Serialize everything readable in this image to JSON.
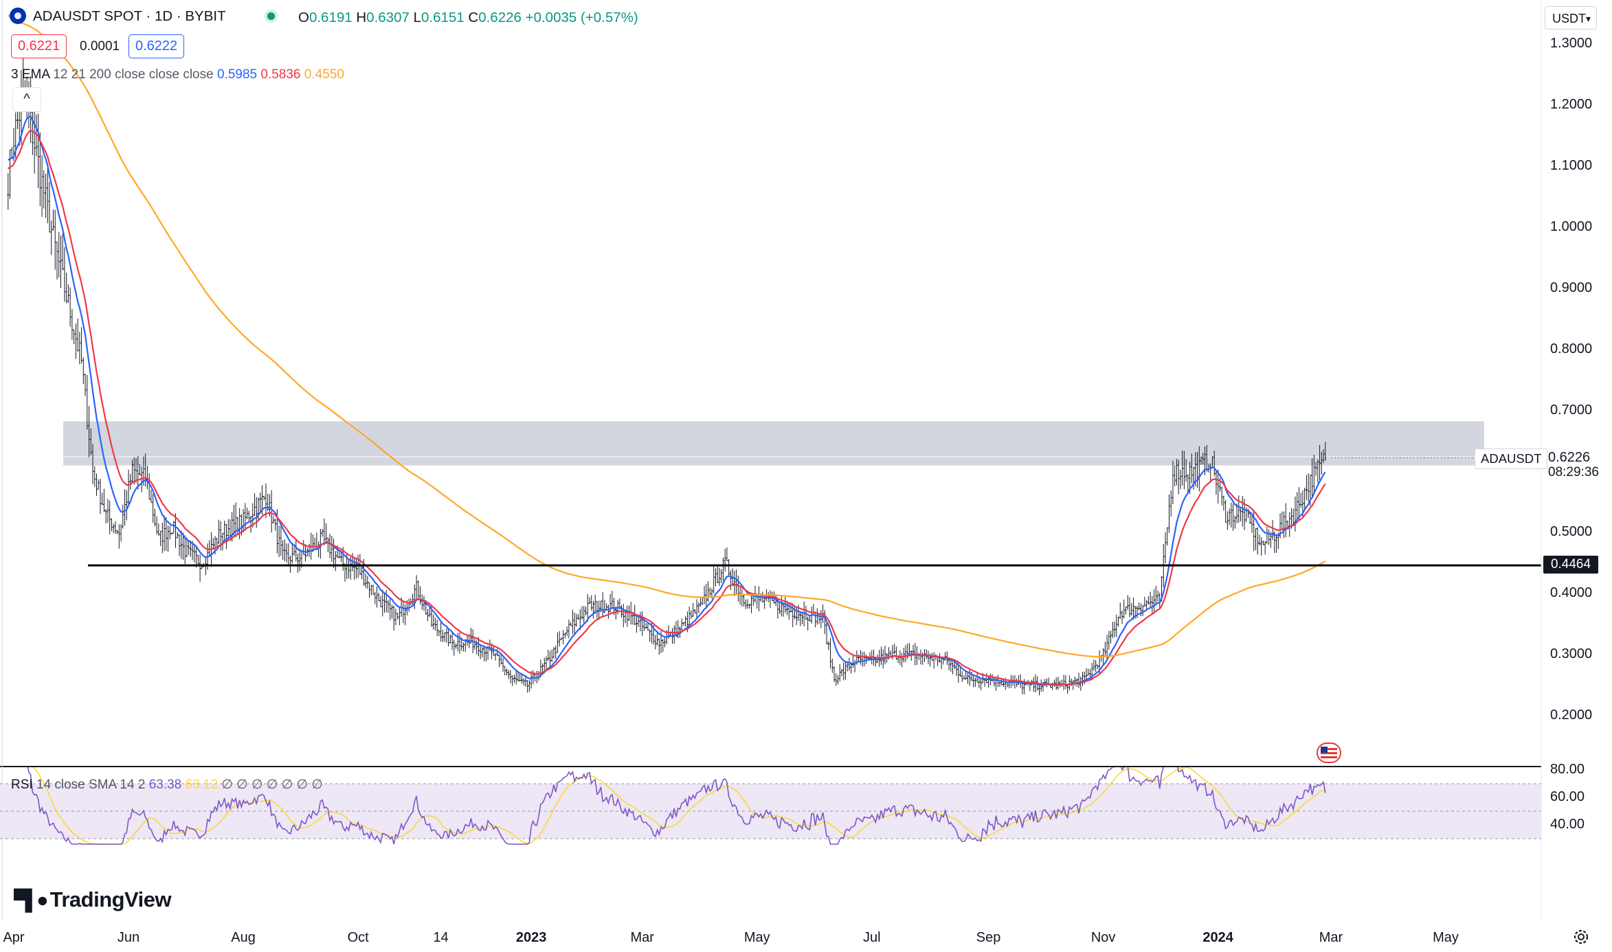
{
  "header": {
    "symbol": "ADAUSDT SPOT · 1D · BYBIT",
    "open_label": "O",
    "open": "0.6191",
    "high_label": "H",
    "high": "0.6307",
    "low_label": "L",
    "low": "0.6151",
    "close_label": "C",
    "close": "0.6226",
    "change": "+0.0035 (+0.57%)",
    "bid": "0.6221",
    "spread": "0.0001",
    "ask": "0.6222"
  },
  "ema_legend": {
    "title": "3 EMA",
    "params": "12 21 200 close close close",
    "v1": "0.5985",
    "v2": "0.5836",
    "v3": "0.4550"
  },
  "rsi_legend": {
    "title": "RSI",
    "params": "14 close SMA 14 2",
    "rsi": "63.38",
    "sma": "63.12",
    "flags": "∅ ∅ ∅ ∅ ∅ ∅ ∅"
  },
  "currency": "USDT",
  "collapse_glyph": "^",
  "ticker_tag": "ADAUSDT",
  "last_price": "0.6226",
  "countdown": "08:29:36",
  "level_tag": "0.4464",
  "brand": "TradingView",
  "colors": {
    "ema12": "#2962ff",
    "ema21": "#f23645",
    "ema200": "#ffa726",
    "rsi": "#7e57c2",
    "rsi_sma": "#fdd835",
    "zone": "#d1d4dc",
    "rsi_band": "#ede7f6",
    "candle": "#131722"
  },
  "chart_data": [
    {
      "type": "candlestick",
      "title": "ADAUSDT SPOT · 1D · BYBIT",
      "y_axis": {
        "labels": [
          "1.3000",
          "1.2000",
          "1.1000",
          "1.0000",
          "0.9000",
          "0.8000",
          "0.7000",
          "0.5000",
          "0.4000",
          "0.3000",
          "0.2000"
        ],
        "values": [
          1.3,
          1.2,
          1.1,
          1.0,
          0.9,
          0.8,
          0.7,
          0.5,
          0.4,
          0.3,
          0.2
        ],
        "scale": "log"
      },
      "x_axis": {
        "labels": [
          "Apr",
          "Jun",
          "Aug",
          "Oct",
          "14",
          "2023",
          "Mar",
          "May",
          "Jul",
          "Sep",
          "Nov",
          "2024",
          "Mar",
          "May"
        ],
        "dates": [
          "2022-04-01",
          "2022-06-01",
          "2022-08-01",
          "2022-10-01",
          "2022-11-14",
          "2023-01-01",
          "2023-03-01",
          "2023-05-01",
          "2023-07-01",
          "2023-09-01",
          "2023-11-01",
          "2024-01-01",
          "2024-03-01",
          "2024-05-01"
        ],
        "bold": [
          false,
          false,
          false,
          false,
          false,
          true,
          false,
          false,
          false,
          false,
          false,
          true,
          false,
          false
        ]
      },
      "approx_close_path": [
        [
          "2022-03-29",
          1.08
        ],
        [
          "2022-04-01",
          1.15
        ],
        [
          "2022-04-07",
          1.22
        ],
        [
          "2022-04-13",
          1.12
        ],
        [
          "2022-04-22",
          0.98
        ],
        [
          "2022-05-01",
          0.86
        ],
        [
          "2022-05-07",
          0.78
        ],
        [
          "2022-05-13",
          0.6
        ],
        [
          "2022-05-20",
          0.53
        ],
        [
          "2022-05-27",
          0.5
        ],
        [
          "2022-06-03",
          0.6
        ],
        [
          "2022-06-10",
          0.59
        ],
        [
          "2022-06-17",
          0.49
        ],
        [
          "2022-06-24",
          0.51
        ],
        [
          "2022-07-01",
          0.47
        ],
        [
          "2022-07-10",
          0.45
        ],
        [
          "2022-07-20",
          0.5
        ],
        [
          "2022-08-01",
          0.52
        ],
        [
          "2022-08-13",
          0.56
        ],
        [
          "2022-08-22",
          0.46
        ],
        [
          "2022-09-01",
          0.46
        ],
        [
          "2022-09-12",
          0.49
        ],
        [
          "2022-09-22",
          0.45
        ],
        [
          "2022-10-01",
          0.44
        ],
        [
          "2022-10-12",
          0.39
        ],
        [
          "2022-10-22",
          0.36
        ],
        [
          "2022-11-01",
          0.41
        ],
        [
          "2022-11-09",
          0.35
        ],
        [
          "2022-11-20",
          0.32
        ],
        [
          "2022-12-01",
          0.32
        ],
        [
          "2022-12-12",
          0.3
        ],
        [
          "2022-12-22",
          0.26
        ],
        [
          "2022-12-30",
          0.25
        ],
        [
          "2023-01-10",
          0.29
        ],
        [
          "2023-01-20",
          0.34
        ],
        [
          "2023-02-01",
          0.38
        ],
        [
          "2023-02-14",
          0.38
        ],
        [
          "2023-02-24",
          0.36
        ],
        [
          "2023-03-10",
          0.32
        ],
        [
          "2023-03-20",
          0.34
        ],
        [
          "2023-04-01",
          0.38
        ],
        [
          "2023-04-14",
          0.45
        ],
        [
          "2023-04-24",
          0.39
        ],
        [
          "2023-05-05",
          0.39
        ],
        [
          "2023-05-20",
          0.37
        ],
        [
          "2023-06-05",
          0.36
        ],
        [
          "2023-06-11",
          0.26
        ],
        [
          "2023-06-22",
          0.29
        ],
        [
          "2023-07-01",
          0.29
        ],
        [
          "2023-07-13",
          0.3
        ],
        [
          "2023-07-25",
          0.3
        ],
        [
          "2023-08-10",
          0.29
        ],
        [
          "2023-08-20",
          0.26
        ],
        [
          "2023-09-01",
          0.26
        ],
        [
          "2023-09-20",
          0.25
        ],
        [
          "2023-10-10",
          0.25
        ],
        [
          "2023-10-22",
          0.26
        ],
        [
          "2023-11-01",
          0.3
        ],
        [
          "2023-11-10",
          0.37
        ],
        [
          "2023-11-20",
          0.38
        ],
        [
          "2023-12-01",
          0.39
        ],
        [
          "2023-12-08",
          0.6
        ],
        [
          "2023-12-18",
          0.6
        ],
        [
          "2023-12-28",
          0.62
        ],
        [
          "2024-01-05",
          0.53
        ],
        [
          "2024-01-15",
          0.53
        ],
        [
          "2024-01-24",
          0.48
        ],
        [
          "2024-02-01",
          0.5
        ],
        [
          "2024-02-10",
          0.53
        ],
        [
          "2024-02-20",
          0.59
        ],
        [
          "2024-02-27",
          0.6226
        ]
      ],
      "series": [
        {
          "name": "EMA 12",
          "last": 0.5985
        },
        {
          "name": "EMA 21",
          "last": 0.5836
        },
        {
          "name": "EMA 200",
          "last": 0.455
        }
      ],
      "annotations": {
        "resistance_zone": [
          0.61,
          0.68
        ],
        "horizontal_level": 0.4464,
        "last_close": 0.6226
      },
      "grid": false
    },
    {
      "type": "line",
      "title": "RSI 14 close SMA 14 2",
      "y_axis": {
        "labels": [
          "80.00",
          "60.00",
          "40.00"
        ],
        "values": [
          80,
          60,
          40
        ]
      },
      "bands": {
        "upper": 70,
        "middle": 50,
        "lower": 30
      },
      "last": {
        "RSI": 63.38,
        "RSI SMA": 63.12
      },
      "grid": false
    }
  ]
}
